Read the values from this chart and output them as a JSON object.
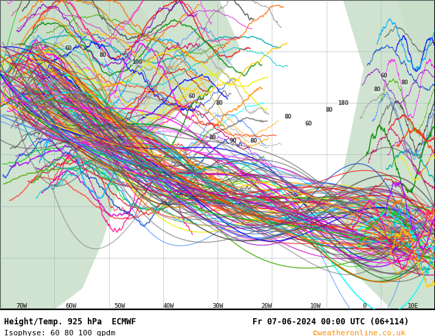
{
  "title_line1": "Height/Temp. 925 hPa  ECMWF",
  "title_line2": "Fr 07-06-2024 00:00 UTC (06+114)",
  "legend_text": "Isophyse: 60 80 100 gpdm",
  "copyright_text": "©weatheronline.co.uk",
  "bg_color": "#e8f4e8",
  "ocean_color": "#d0e8f0",
  "land_color": "#c8e8c8",
  "grid_color": "#b0b0b0",
  "border_color": "#000000",
  "bottom_bar_color": "#ffffff",
  "bottom_bar_height": 0.08,
  "fig_width": 6.34,
  "fig_height": 4.9,
  "dpi": 100,
  "map_bg": "#d8ecf8",
  "copyright_color": "#ff8c00"
}
